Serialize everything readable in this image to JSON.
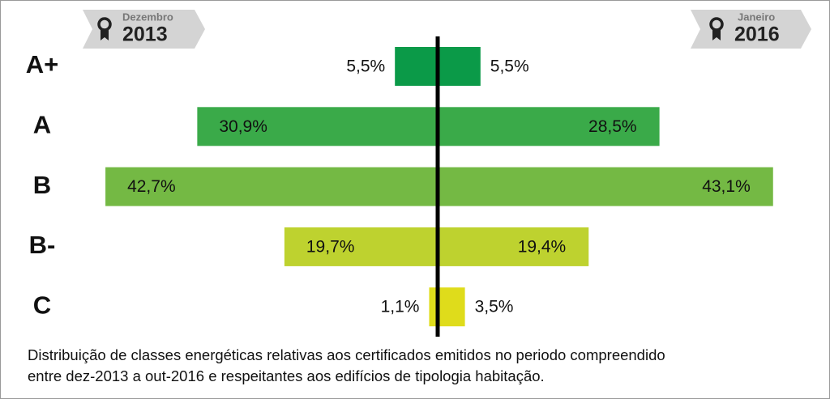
{
  "chart_data": {
    "type": "butterfly",
    "categories": [
      "A+",
      "A",
      "B",
      "B-",
      "C"
    ],
    "colors": [
      "#0b9a48",
      "#3aaa49",
      "#74b944",
      "#bed22f",
      "#dfdc1b"
    ],
    "series": [
      {
        "name": "Dezembro",
        "period": "2013",
        "side": "left",
        "values": [
          5.5,
          30.9,
          42.7,
          19.7,
          1.1
        ],
        "value_labels": [
          "5,5%",
          "30,9%",
          "42,7%",
          "19,7%",
          "1,1%"
        ]
      },
      {
        "name": "Janeiro",
        "period": "2016",
        "side": "right",
        "values": [
          5.5,
          28.5,
          43.1,
          19.4,
          3.5
        ],
        "value_labels": [
          "5,5%",
          "28,5%",
          "43,1%",
          "19,4%",
          "3,5%"
        ]
      }
    ],
    "caption": [
      "Distribuição de classes energéticas relativas aos certificados emitidos no periodo compreendido",
      "entre dez-2013 a out-2016 e respeitantes aos edifícios de tipologia habitação."
    ]
  }
}
